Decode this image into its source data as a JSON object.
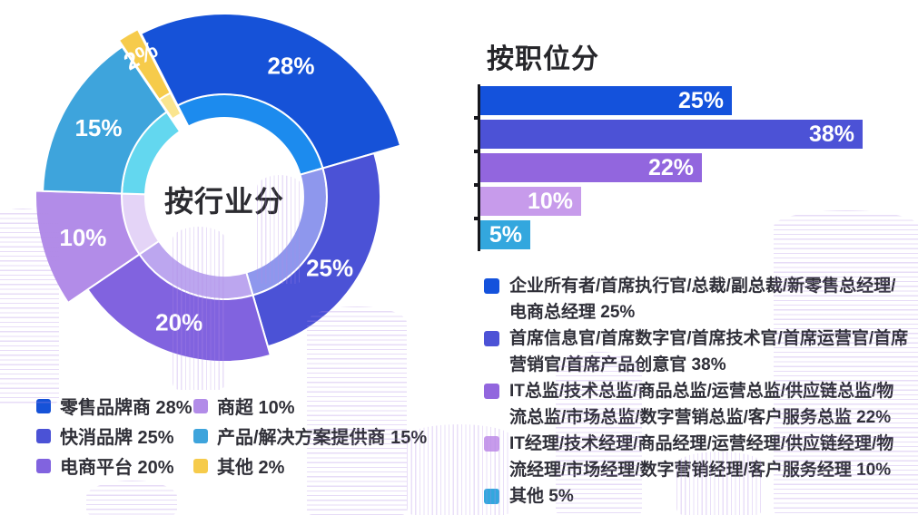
{
  "chart_data": [
    {
      "type": "donut",
      "title": "按行业分",
      "unit": "%",
      "start_angle": -27,
      "center": [
        247,
        217
      ],
      "hole_radius": 87,
      "ring_split_radius": 113,
      "legend_position": "bottom-left",
      "segments": [
        {
          "label": "零售品牌商",
          "value": 28,
          "display": "28%",
          "color": "#1652D8",
          "inner_color": "#1C8BEE",
          "outer_r": 202,
          "label_r": 162,
          "label_angle": 27
        },
        {
          "label": "快消品牌",
          "value": 25,
          "display": "25%",
          "color": "#4B52D6",
          "inner_color": "#8E97ED",
          "outer_r": 172,
          "label_r": 140,
          "label_angle": 124
        },
        {
          "label": "电商平台",
          "value": 20,
          "display": "20%",
          "color": "#8163DF",
          "inner_color": "#BCA6EF",
          "outer_r": 182,
          "label_r": 147
        },
        {
          "label": "商超",
          "value": 10,
          "display": "10%",
          "color": "#B28CE8",
          "inner_color": "#E4D4F7",
          "outer_r": 208,
          "label_r": 162
        },
        {
          "label": "产品/解决方案提供商",
          "value": 15,
          "display": "15%",
          "color": "#3EA4DC",
          "inner_color": "#63D7EF",
          "outer_r": 200,
          "label_r": 158
        },
        {
          "label": "其他",
          "value": 2,
          "display": "2%",
          "color": "#F6CB4B",
          "inner_color": "#FAE58F",
          "outer_r": 192,
          "label_r": 165,
          "explode": 16,
          "label_rotate": -28,
          "label_size": 24
        }
      ],
      "legend": [
        {
          "text": "零售品牌商 28%",
          "color": "#1652D8"
        },
        {
          "text": "快消品牌 25%",
          "color": "#4B52D6"
        },
        {
          "text": "电商平台 20%",
          "color": "#8163DF"
        },
        {
          "text": "商超 10%",
          "color": "#B28CE8"
        },
        {
          "text": "产品/解决方案提供商 15%",
          "color": "#3EA4DC"
        },
        {
          "text": "其他 2%",
          "color": "#F6CB4B"
        }
      ]
    },
    {
      "type": "bar",
      "title": "按职位分",
      "orientation": "horizontal",
      "unit": "%",
      "xlim": [
        0,
        43
      ],
      "grid": false,
      "categories": [
        "企业所有者/首席执行官/总裁/副总裁/新零售总经理/电商总经理",
        "首席信息官/首席数字官/首席技术官/首席运营官/首席营销官/首席产品创意官",
        "IT总监/技术总监/商品总监/运营总监/供应链总监/物流总监/市场总监/数字营销总监/客户服务总监",
        "IT经理/技术经理/商品经理/运营经理/供应链经理/物流经理/市场经理/数字营销经理/客户服务经理",
        "其他"
      ],
      "values": [
        25,
        38,
        22,
        10,
        5
      ],
      "labels": [
        "25%",
        "38%",
        "22%",
        "10%",
        "5%"
      ],
      "colors": [
        "#1452DC",
        "#4C52D6",
        "#9266DE",
        "#C79BEB",
        "#33A7DE"
      ],
      "legend": [
        {
          "text": "企业所有者/首席执行官/总裁/副总裁/新零售总经理/电商总经理 25%",
          "color": "#1452DC"
        },
        {
          "text": "首席信息官/首席数字官/首席技术官/首席运营官/首席营销官/首席产品创意官 38%",
          "color": "#4C52D6"
        },
        {
          "text": "IT总监/技术总监/商品总监/运营总监/供应链总监/物流总监/市场总监/数字营销总监/客户服务总监 22%",
          "color": "#9266DE"
        },
        {
          "text": "IT经理/技术经理/商品经理/运营经理/供应链经理/物流经理/市场经理/数字营销经理/客户服务经理 10%",
          "color": "#C79BEB"
        },
        {
          "text": "其他 5%",
          "color": "#33A7DE"
        }
      ]
    }
  ]
}
